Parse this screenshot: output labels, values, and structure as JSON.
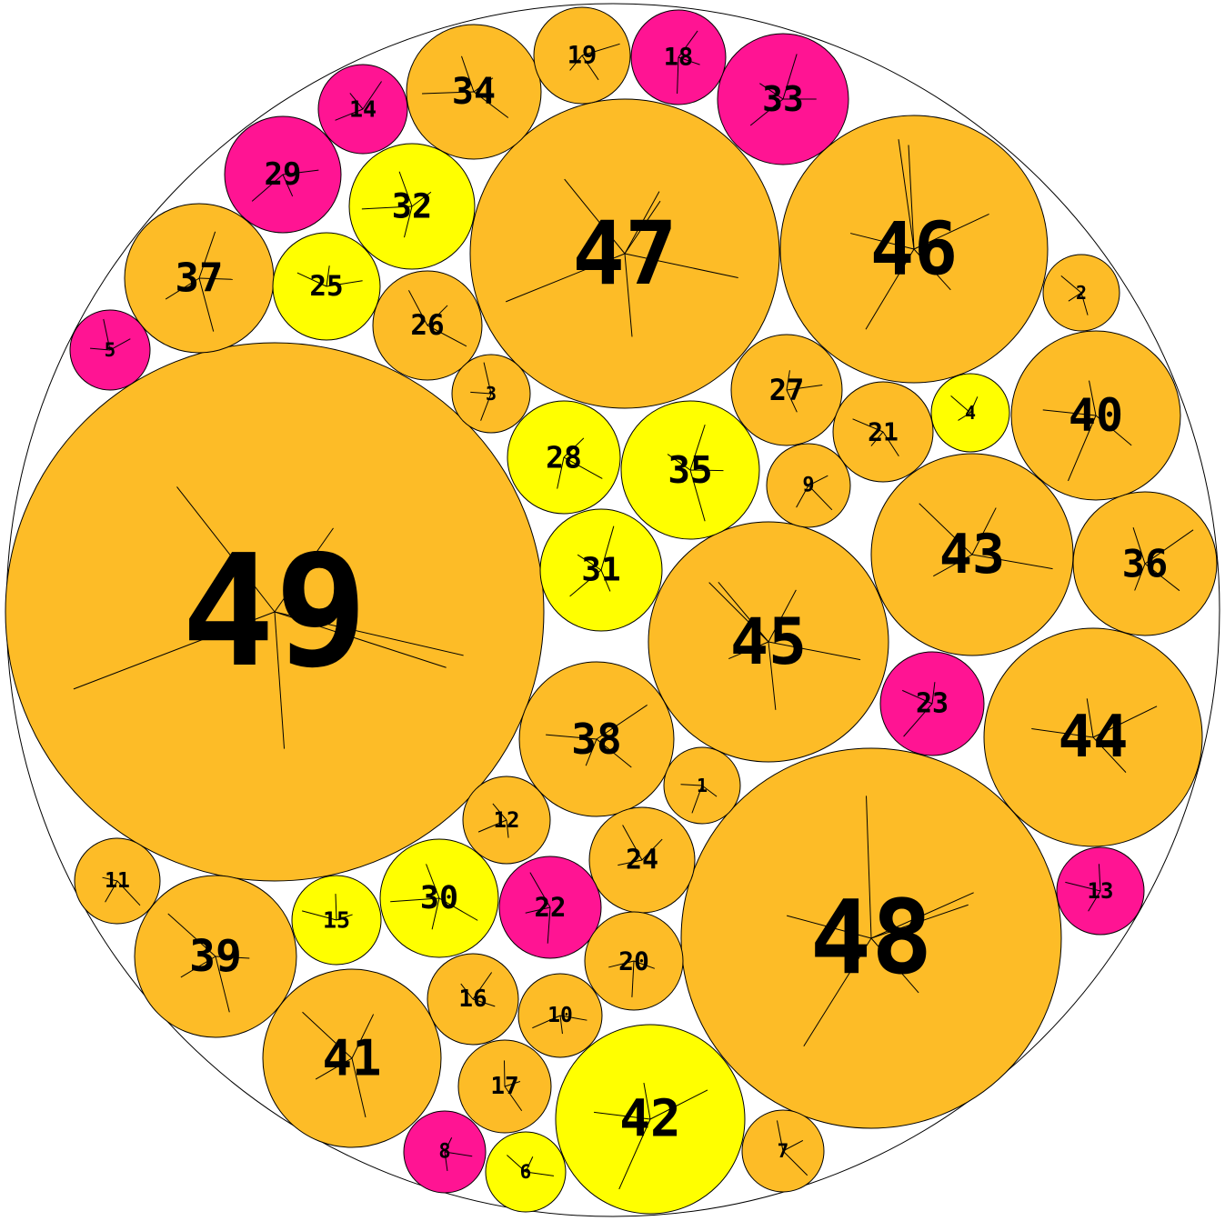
{
  "colors": {
    "orange": "#FDBC27",
    "yellow": "#FFFF00",
    "pink": "#FF1493",
    "outline": "#000000",
    "background": "#FFFFFF"
  },
  "circles": [
    {
      "label": "49",
      "color": "orange"
    },
    {
      "label": "48",
      "color": "orange"
    },
    {
      "label": "47",
      "color": "orange"
    },
    {
      "label": "46",
      "color": "orange"
    },
    {
      "label": "45",
      "color": "orange"
    },
    {
      "label": "44",
      "color": "orange"
    },
    {
      "label": "43",
      "color": "orange"
    },
    {
      "label": "42",
      "color": "yellow"
    },
    {
      "label": "41",
      "color": "orange"
    },
    {
      "label": "40",
      "color": "orange"
    },
    {
      "label": "39",
      "color": "orange"
    },
    {
      "label": "38",
      "color": "orange"
    },
    {
      "label": "37",
      "color": "orange"
    },
    {
      "label": "36",
      "color": "orange"
    },
    {
      "label": "35",
      "color": "yellow"
    },
    {
      "label": "34",
      "color": "orange"
    },
    {
      "label": "33",
      "color": "pink"
    },
    {
      "label": "32",
      "color": "yellow"
    },
    {
      "label": "31",
      "color": "yellow"
    },
    {
      "label": "30",
      "color": "yellow"
    },
    {
      "label": "29",
      "color": "pink"
    },
    {
      "label": "28",
      "color": "yellow"
    },
    {
      "label": "27",
      "color": "orange"
    },
    {
      "label": "26",
      "color": "orange"
    },
    {
      "label": "25",
      "color": "yellow"
    },
    {
      "label": "24",
      "color": "orange"
    },
    {
      "label": "23",
      "color": "pink"
    },
    {
      "label": "22",
      "color": "pink"
    },
    {
      "label": "21",
      "color": "orange"
    },
    {
      "label": "20",
      "color": "orange"
    },
    {
      "label": "19",
      "color": "orange"
    },
    {
      "label": "18",
      "color": "pink"
    },
    {
      "label": "17",
      "color": "orange"
    },
    {
      "label": "16",
      "color": "orange"
    },
    {
      "label": "15",
      "color": "yellow"
    },
    {
      "label": "14",
      "color": "pink"
    },
    {
      "label": "13",
      "color": "pink"
    },
    {
      "label": "12",
      "color": "orange"
    },
    {
      "label": "11",
      "color": "orange"
    },
    {
      "label": "10",
      "color": "orange"
    },
    {
      "label": "9",
      "color": "orange"
    },
    {
      "label": "8",
      "color": "pink"
    },
    {
      "label": "7",
      "color": "orange"
    },
    {
      "label": "6",
      "color": "yellow"
    },
    {
      "label": "5",
      "color": "pink"
    },
    {
      "label": "4",
      "color": "yellow"
    },
    {
      "label": "3",
      "color": "orange"
    },
    {
      "label": "2",
      "color": "orange"
    },
    {
      "label": "1",
      "color": "orange"
    }
  ]
}
